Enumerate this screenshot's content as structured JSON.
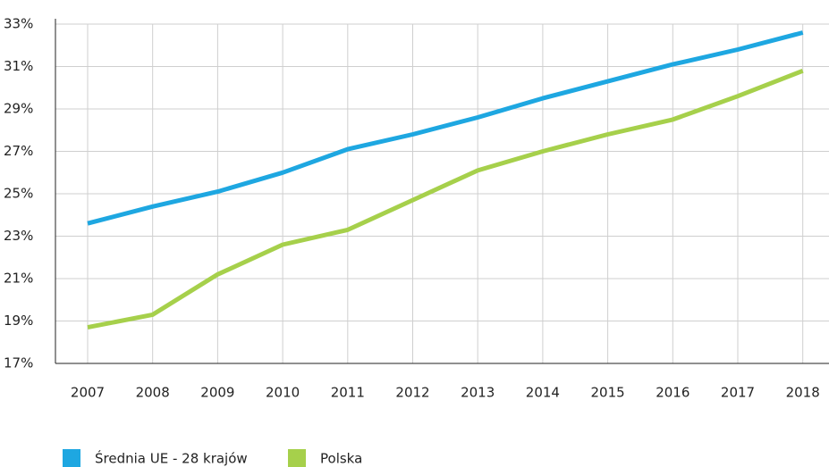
{
  "chart_data": {
    "type": "line",
    "categories": [
      "2007",
      "2008",
      "2009",
      "2010",
      "2011",
      "2012",
      "2013",
      "2014",
      "2015",
      "2016",
      "2017",
      "2018"
    ],
    "series": [
      {
        "name": "Średnia UE - 28 krajów",
        "color": "#1ea7e1",
        "values": [
          23.6,
          24.4,
          25.1,
          26.0,
          27.1,
          27.8,
          28.6,
          29.5,
          30.3,
          31.1,
          31.8,
          32.6
        ]
      },
      {
        "name": "Polska",
        "color": "#a6d04b",
        "values": [
          18.7,
          19.3,
          21.2,
          22.6,
          23.3,
          24.7,
          26.1,
          27.0,
          27.8,
          28.5,
          29.6,
          30.8
        ]
      }
    ],
    "ylim": [
      17,
      33
    ],
    "yticks": [
      {
        "value": 17,
        "label": "17%"
      },
      {
        "value": 19,
        "label": "19%"
      },
      {
        "value": 21,
        "label": "21%"
      },
      {
        "value": 23,
        "label": "23%"
      },
      {
        "value": 25,
        "label": "25%"
      },
      {
        "value": 27,
        "label": "27%"
      },
      {
        "value": 29,
        "label": "29%"
      },
      {
        "value": 31,
        "label": "31%"
      },
      {
        "value": 33,
        "label": "33%"
      }
    ],
    "grid": true
  }
}
